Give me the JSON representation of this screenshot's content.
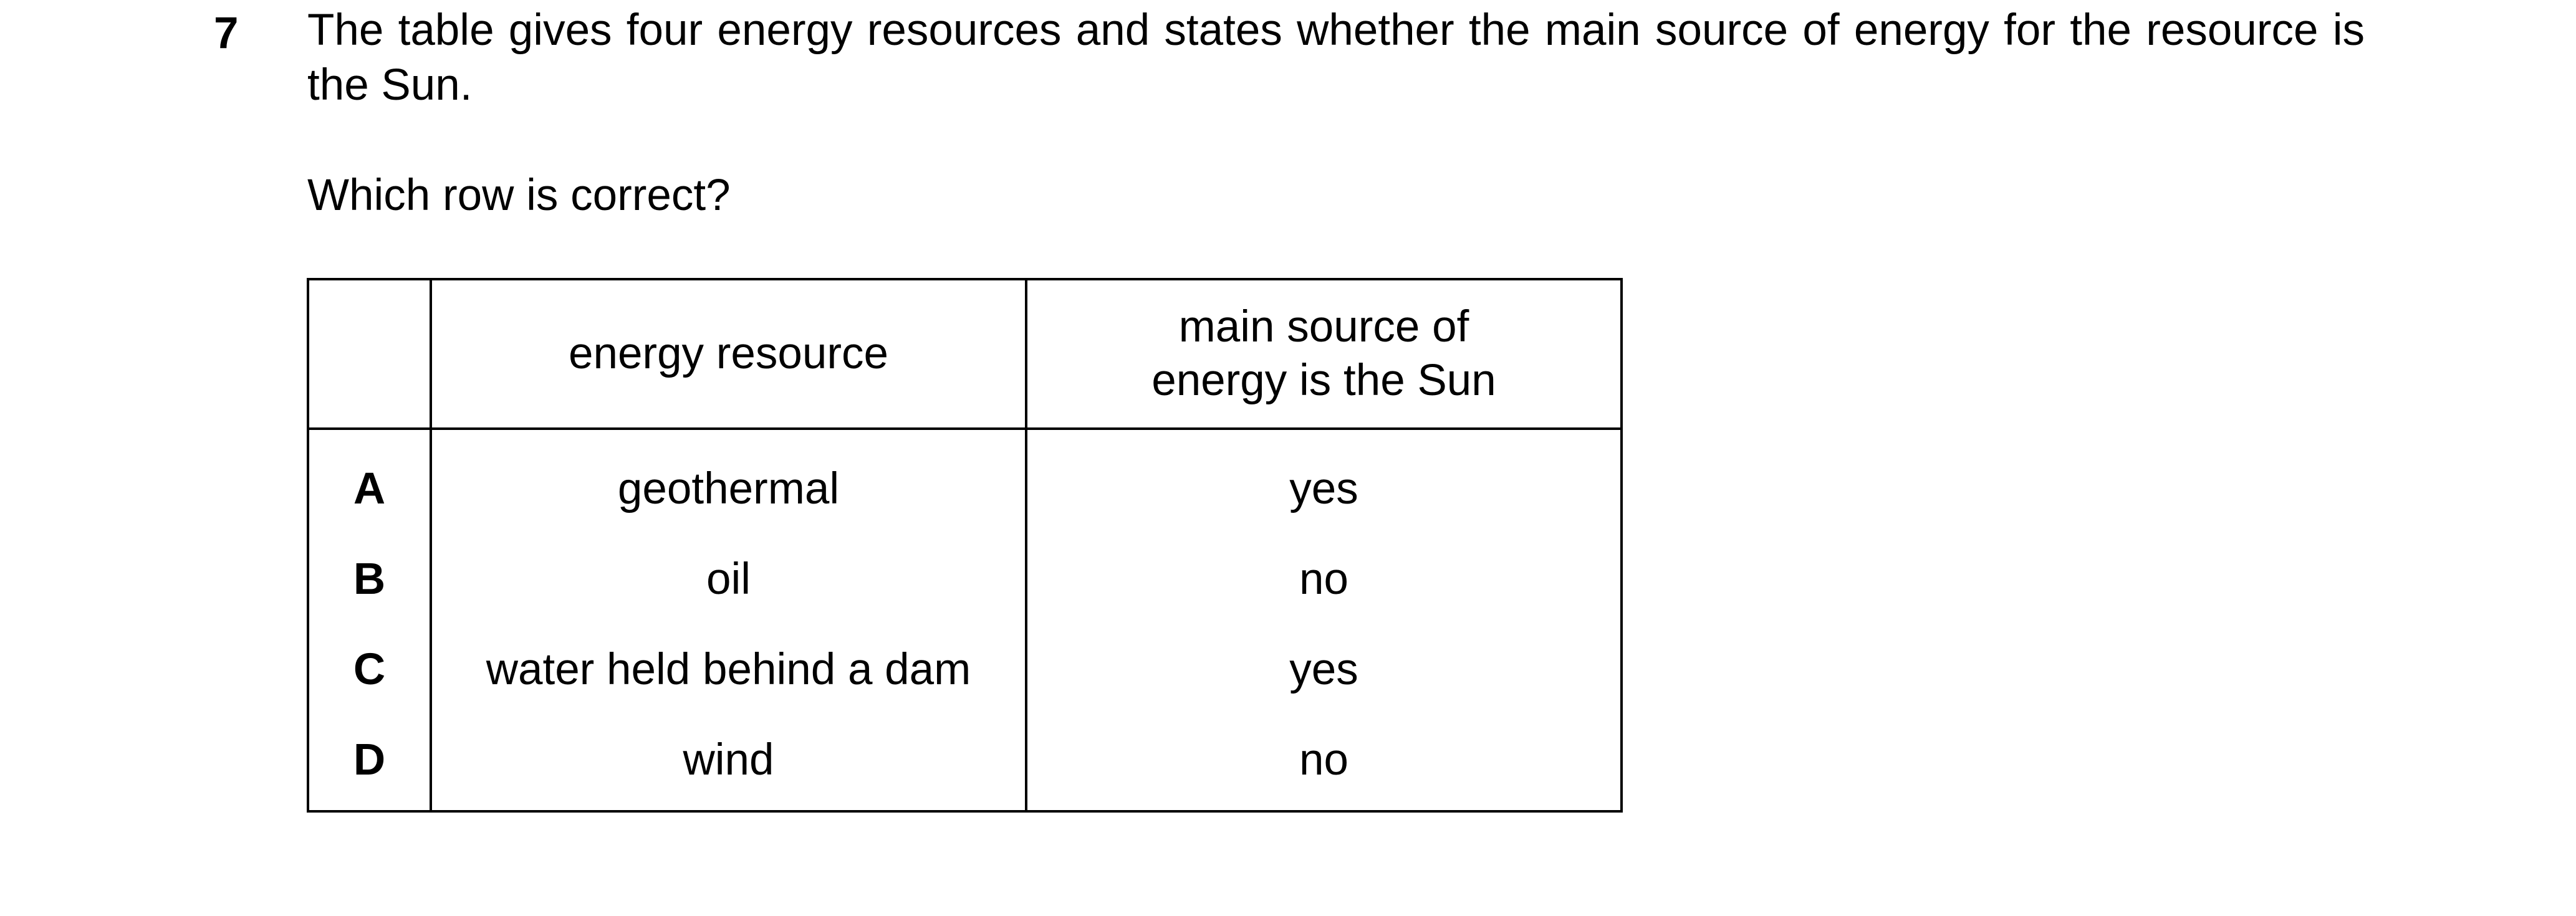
{
  "question": {
    "number": "7",
    "stem": "The table gives four energy resources and states whether the main source of energy for the resource is the Sun.",
    "prompt": "Which row is correct?"
  },
  "table": {
    "headers": [
      "",
      "energy resource",
      "main source of energy is the Sun"
    ],
    "rows": [
      {
        "letter": "A",
        "resource": "geothermal",
        "sun": "yes"
      },
      {
        "letter": "B",
        "resource": "oil",
        "sun": "no"
      },
      {
        "letter": "C",
        "resource": "water held behind a dam",
        "sun": "yes"
      },
      {
        "letter": "D",
        "resource": "wind",
        "sun": "no"
      }
    ]
  }
}
